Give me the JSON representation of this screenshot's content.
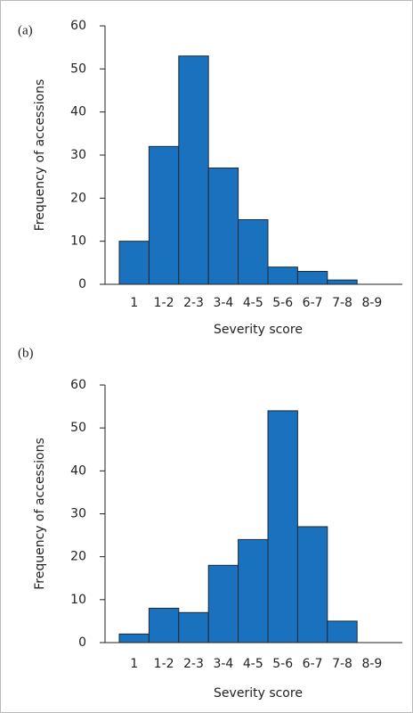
{
  "chart_data": [
    {
      "type": "bar",
      "panel_label": "(a)",
      "xlabel": "Severity score",
      "ylabel": "Frequency of accessions",
      "categories": [
        "1",
        "1-2",
        "2-3",
        "3-4",
        "4-5",
        "5-6",
        "6-7",
        "7-8",
        "8-9"
      ],
      "values": [
        10,
        32,
        53,
        27,
        15,
        4,
        3,
        1,
        0
      ],
      "color": "#1a72be",
      "ylim": [
        0,
        60
      ],
      "yticks": [
        0,
        10,
        20,
        30,
        40,
        50,
        60
      ],
      "grid": false
    },
    {
      "type": "bar",
      "panel_label": "(b)",
      "xlabel": "Severity score",
      "ylabel": "Frequency of accessions",
      "categories": [
        "1",
        "1-2",
        "2-3",
        "3-4",
        "4-5",
        "5-6",
        "6-7",
        "7-8",
        "8-9"
      ],
      "values": [
        2,
        8,
        7,
        18,
        24,
        54,
        27,
        5,
        0
      ],
      "color": "#1a72be",
      "ylim": [
        0,
        60
      ],
      "yticks": [
        0,
        10,
        20,
        30,
        40,
        50,
        60
      ],
      "grid": false
    }
  ]
}
